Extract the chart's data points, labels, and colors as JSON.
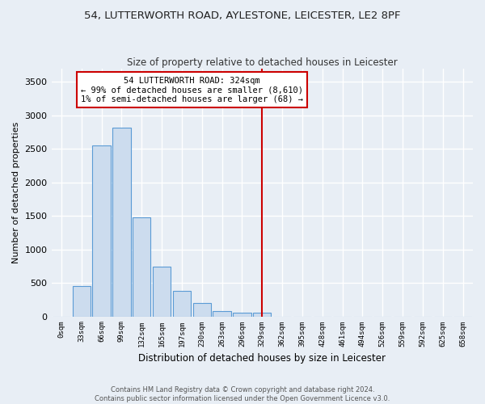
{
  "title_line1": "54, LUTTERWORTH ROAD, AYLESTONE, LEICESTER, LE2 8PF",
  "title_line2": "Size of property relative to detached houses in Leicester",
  "xlabel": "Distribution of detached houses by size in Leicester",
  "ylabel": "Number of detached properties",
  "footer_line1": "Contains HM Land Registry data © Crown copyright and database right 2024.",
  "footer_line2": "Contains public sector information licensed under the Open Government Licence v3.0.",
  "bar_labels": [
    "0sqm",
    "33sqm",
    "66sqm",
    "99sqm",
    "132sqm",
    "165sqm",
    "197sqm",
    "230sqm",
    "263sqm",
    "296sqm",
    "329sqm",
    "362sqm",
    "395sqm",
    "428sqm",
    "461sqm",
    "494sqm",
    "526sqm",
    "559sqm",
    "592sqm",
    "625sqm",
    "658sqm"
  ],
  "bar_values": [
    0,
    450,
    2550,
    2820,
    1480,
    740,
    380,
    200,
    80,
    50,
    50,
    0,
    0,
    0,
    0,
    0,
    0,
    0,
    0,
    0,
    0
  ],
  "bar_color": "#ccdcee",
  "bar_edge_color": "#5b9bd5",
  "vline_x_index": 10,
  "vline_color": "#cc0000",
  "annotation_text": "54 LUTTERWORTH ROAD: 324sqm\n← 99% of detached houses are smaller (8,610)\n1% of semi-detached houses are larger (68) →",
  "annotation_box_color": "#ffffff",
  "annotation_box_edge": "#cc0000",
  "ylim": [
    0,
    3700
  ],
  "yticks": [
    0,
    500,
    1000,
    1500,
    2000,
    2500,
    3000,
    3500
  ],
  "bg_color": "#e8eef5",
  "plot_bg_color": "#e8eef5",
  "grid_color": "#d0d8e4"
}
